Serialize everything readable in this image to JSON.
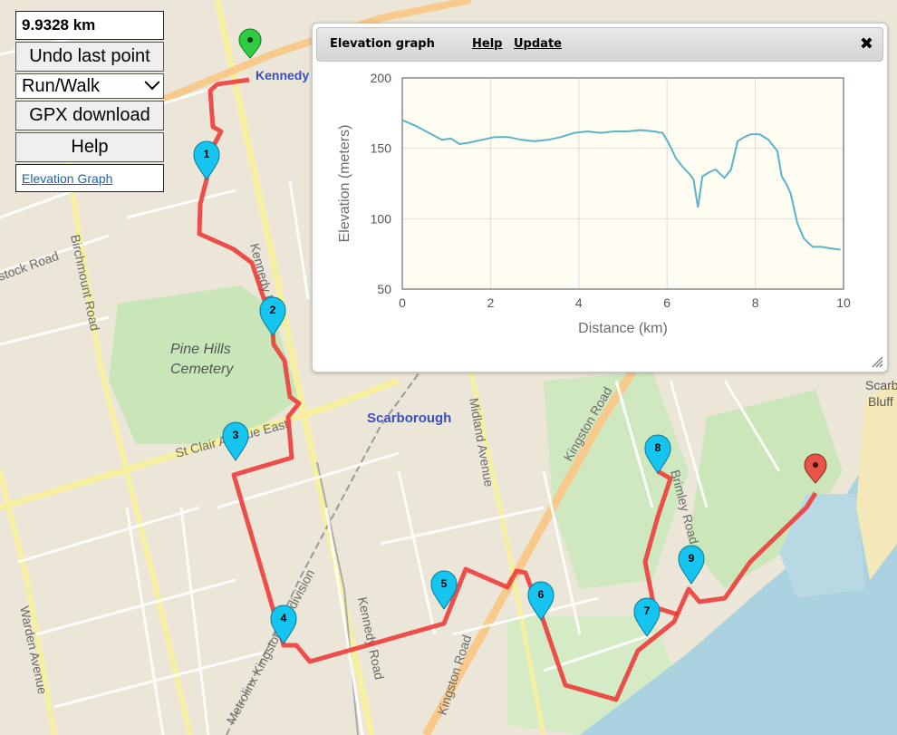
{
  "panel": {
    "distance": "9.9328 km",
    "undo_label": "Undo last point",
    "activity": "Run/Walk",
    "gpx_label": "GPX download",
    "help_label": "Help",
    "elevation_link": "Elevation Graph"
  },
  "map": {
    "labels": [
      "Kennedy",
      "Pine Hills",
      "Cemetery",
      "St Clair Avenue East",
      "Scarborough",
      "Birchmount Road",
      "Kingston Road",
      "Midland Avenue",
      "Kennedy Road",
      "Warden Avenue",
      "Metrolinx Kingston Subdivision",
      "Scarborough Bluffs",
      "Stock Road",
      "Birchmount Road",
      "Kennedy Ro"
    ],
    "markers": [
      "1",
      "2",
      "3",
      "4",
      "5",
      "6",
      "7",
      "8",
      "9"
    ],
    "colors": {
      "route": "#ee3333",
      "waypoint": "#16c5ef",
      "start": "#2ecc40",
      "end": "#e8534a"
    }
  },
  "elevation_panel": {
    "title": "Elevation graph",
    "help": "Help",
    "update": "Update",
    "close_icon": "close-icon"
  },
  "chart_data": {
    "type": "line",
    "xlabel": "Distance (km)",
    "ylabel": "Elevation (meters)",
    "xlim": [
      0,
      10
    ],
    "ylim": [
      50,
      200
    ],
    "xticks": [
      0,
      2,
      4,
      6,
      8,
      10
    ],
    "yticks": [
      50,
      100,
      150,
      200
    ],
    "grid": true,
    "series": [
      {
        "color": "#5ab4c8",
        "points": [
          [
            0,
            170
          ],
          [
            0.3,
            166
          ],
          [
            0.6,
            161
          ],
          [
            0.9,
            156
          ],
          [
            1.1,
            157
          ],
          [
            1.3,
            153
          ],
          [
            1.5,
            154
          ],
          [
            1.8,
            156
          ],
          [
            2.1,
            158
          ],
          [
            2.4,
            158
          ],
          [
            2.7,
            156
          ],
          [
            3.0,
            155
          ],
          [
            3.3,
            156
          ],
          [
            3.6,
            158
          ],
          [
            3.9,
            161
          ],
          [
            4.2,
            162
          ],
          [
            4.5,
            161
          ],
          [
            4.8,
            162
          ],
          [
            5.1,
            162
          ],
          [
            5.4,
            163
          ],
          [
            5.7,
            162
          ],
          [
            5.9,
            161
          ],
          [
            6.05,
            153
          ],
          [
            6.2,
            143
          ],
          [
            6.35,
            137
          ],
          [
            6.5,
            132
          ],
          [
            6.6,
            128
          ],
          [
            6.7,
            108
          ],
          [
            6.8,
            130
          ],
          [
            6.95,
            133
          ],
          [
            7.1,
            135
          ],
          [
            7.3,
            129
          ],
          [
            7.45,
            135
          ],
          [
            7.6,
            155
          ],
          [
            7.75,
            158
          ],
          [
            7.9,
            160
          ],
          [
            8.1,
            160
          ],
          [
            8.3,
            156
          ],
          [
            8.5,
            148
          ],
          [
            8.6,
            130
          ],
          [
            8.7,
            125
          ],
          [
            8.8,
            118
          ],
          [
            8.95,
            97
          ],
          [
            9.1,
            86
          ],
          [
            9.3,
            80
          ],
          [
            9.5,
            80
          ],
          [
            9.7,
            79
          ],
          [
            9.93,
            78
          ]
        ]
      }
    ]
  }
}
